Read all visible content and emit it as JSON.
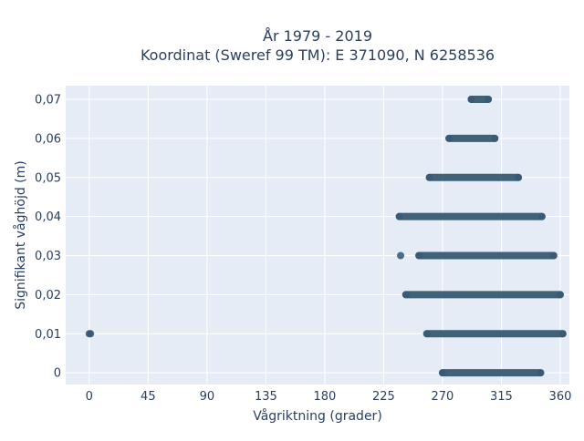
{
  "chart_data": {
    "type": "scatter",
    "title_line1": "År 1979 - 2019",
    "title_line2": "Koordinat (Sweref 99 TM): E 371090, N 6258536",
    "xlabel": "Vågriktning (grader)",
    "ylabel": "Signifikant våghöjd (m)",
    "xlim": [
      -18,
      367
    ],
    "ylim": [
      -0.003,
      0.0735
    ],
    "x_ticks": [
      0,
      45,
      90,
      135,
      180,
      225,
      270,
      315,
      360
    ],
    "x_tick_labels": [
      "0",
      "45",
      "90",
      "135",
      "180",
      "225",
      "270",
      "315",
      "360"
    ],
    "y_ticks": [
      0,
      0.01,
      0.02,
      0.03,
      0.04,
      0.05,
      0.06,
      0.07
    ],
    "y_tick_labels": [
      "0",
      "0,01",
      "0,02",
      "0,03",
      "0,04",
      "0,05",
      "0,06",
      "0,07"
    ],
    "grid": true,
    "marker_color": "#34566f",
    "plot_bg": "#e5ecf6",
    "bands": [
      {
        "y": 0.07,
        "x_min": 292,
        "x_max": 305
      },
      {
        "y": 0.06,
        "x_min": 275,
        "x_max": 310
      },
      {
        "y": 0.05,
        "x_min": 260,
        "x_max": 328
      },
      {
        "y": 0.04,
        "x_min": 237,
        "x_max": 346
      },
      {
        "y": 0.03,
        "x_min": 252,
        "x_max": 355
      },
      {
        "y": 0.02,
        "x_min": 242,
        "x_max": 360
      },
      {
        "y": 0.01,
        "x_min": 258,
        "x_max": 362
      },
      {
        "y": 0.0,
        "x_min": 270,
        "x_max": 345
      }
    ],
    "isolated_points": [
      {
        "x": 0,
        "y": 0.01
      },
      {
        "x": 1,
        "y": 0.01
      },
      {
        "x": 238,
        "y": 0.03
      }
    ]
  }
}
